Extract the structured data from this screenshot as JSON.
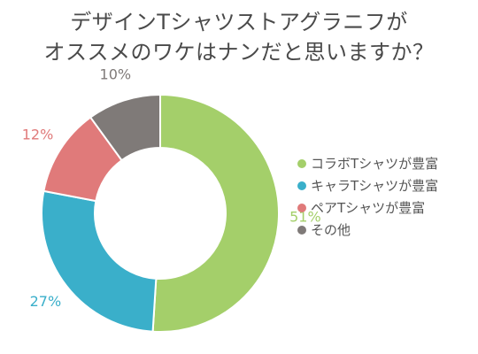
{
  "title": {
    "line1": "デザインTシャツストアグラニフが",
    "line2": "オススメのワケはナンだと思いますか？"
  },
  "chart_data": {
    "type": "pie",
    "donut": true,
    "legend_position": "right",
    "categories": [
      "コラボTシャツが豊富",
      "キャラTシャツが豊富",
      "ペアTシャツが豊富",
      "その他"
    ],
    "values": [
      51,
      27,
      12,
      10
    ],
    "value_labels": [
      "51%",
      "27%",
      "12%",
      "10%"
    ],
    "colors": [
      "#a4cf6a",
      "#3aafca",
      "#e07a7a",
      "#7f7a78"
    ]
  }
}
